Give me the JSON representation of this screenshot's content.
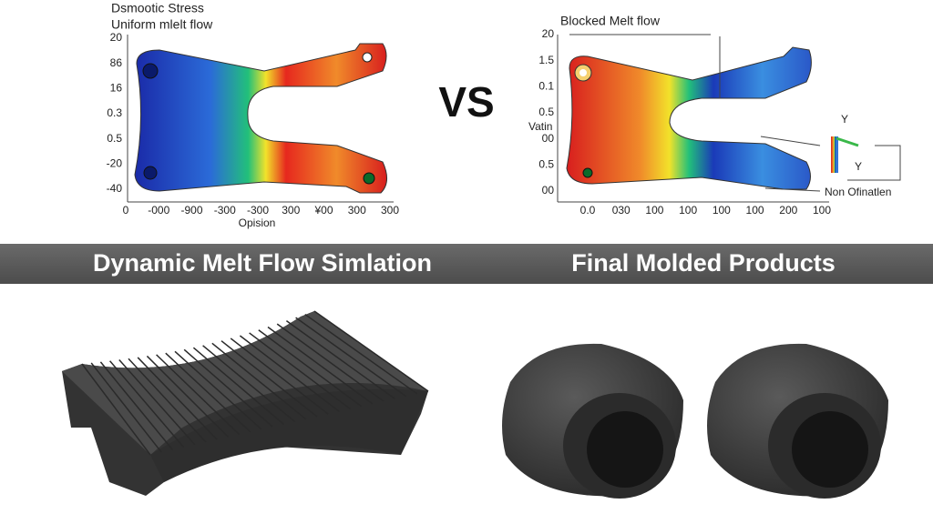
{
  "left_panel": {
    "title_lines": [
      "Dsmootic Stress",
      "Uniform mlelt flow"
    ],
    "y_labels": [
      "20",
      "86",
      "16",
      "0.3",
      "0.5",
      "-20",
      "-40"
    ],
    "x_labels": [
      "0",
      "-000",
      "-900",
      "-300",
      "-300",
      "300",
      "¥00",
      "300",
      "300"
    ],
    "x_title": "Opision"
  },
  "separator": "VS",
  "right_panel": {
    "title": "Blocked Melt flow",
    "y_title": "Vatin",
    "y_labels": [
      "20",
      "1.5",
      "0.1",
      "0.5",
      "00",
      "0.5",
      "00"
    ],
    "x_labels": [
      "0.0",
      "030",
      "100",
      "100",
      "100",
      "100",
      "200",
      "100"
    ],
    "annotation": "Non Ofinatlen",
    "axis_labels": [
      "Y",
      "Y"
    ]
  },
  "banner": {
    "left": "Dynamic Melt Flow Simlation",
    "right": "Final Molded Products"
  }
}
